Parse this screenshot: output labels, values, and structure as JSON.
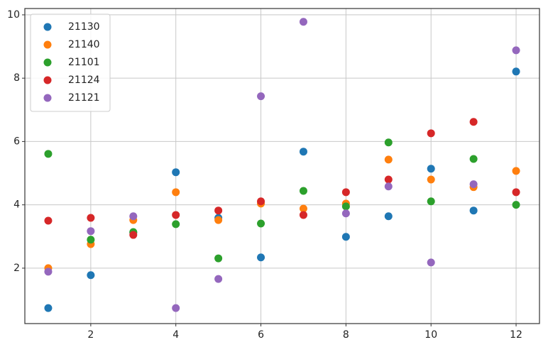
{
  "chart_data": {
    "type": "scatter",
    "x": [
      1,
      2,
      3,
      4,
      5,
      6,
      7,
      8,
      9,
      10,
      11,
      12
    ],
    "series": [
      {
        "name": "21130",
        "color": "#1f77b4",
        "values": [
          0.74,
          1.78,
          3.12,
          5.03,
          3.59,
          2.34,
          5.68,
          2.99,
          3.64,
          5.14,
          3.82,
          8.21
        ]
      },
      {
        "name": "21140",
        "color": "#ff7f0e",
        "values": [
          2.0,
          2.76,
          3.52,
          4.4,
          3.52,
          4.04,
          3.88,
          4.04,
          5.43,
          4.8,
          4.56,
          5.07
        ]
      },
      {
        "name": "21101",
        "color": "#2ca02c",
        "values": [
          5.61,
          2.9,
          3.14,
          3.39,
          2.31,
          3.41,
          4.44,
          3.95,
          5.97,
          4.11,
          5.45,
          4.0
        ]
      },
      {
        "name": "21124",
        "color": "#d62728",
        "values": [
          3.5,
          3.59,
          3.05,
          3.68,
          3.82,
          4.11,
          3.68,
          4.4,
          4.8,
          6.26,
          6.62,
          4.4
        ]
      },
      {
        "name": "21121",
        "color": "#9467bd",
        "values": [
          1.89,
          3.17,
          3.64,
          0.74,
          1.66,
          7.43,
          9.78,
          3.73,
          4.58,
          2.18,
          4.65,
          8.88
        ]
      }
    ],
    "xlim": [
      0.45,
      12.55
    ],
    "ylim": [
      0.25,
      10.2
    ],
    "xticks": [
      2,
      4,
      6,
      8,
      10,
      12
    ],
    "yticks": [
      2,
      4,
      6,
      8,
      10
    ],
    "grid": true,
    "legend": "upper-left"
  }
}
